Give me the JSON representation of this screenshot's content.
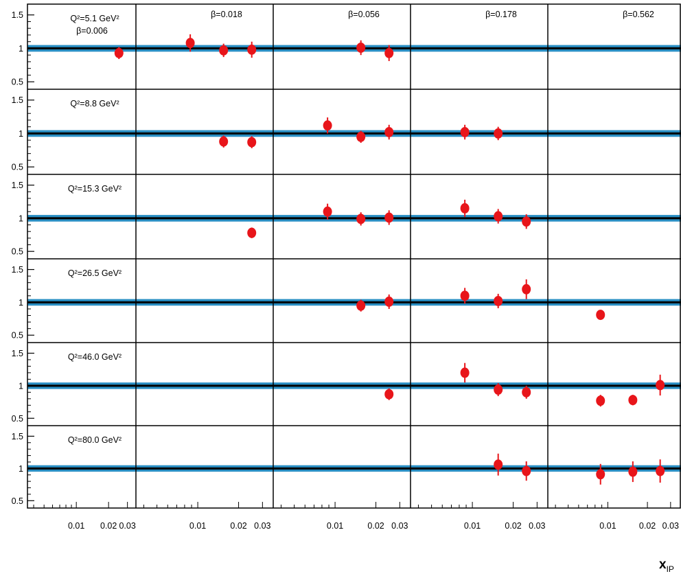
{
  "chart_data": {
    "type": "scatter",
    "description_axes": "grid of panels: rows are Q^2 bins, columns are beta bins; x axis x_IP (log), y axis ratio",
    "xlabel_main": "x",
    "xlabel_sub": "IP",
    "xscale": "log",
    "xlim": [
      0.0035,
      0.036
    ],
    "xticks": [
      0.01,
      0.02,
      0.03
    ],
    "xtick_labels": [
      "0.01",
      "0.02",
      "0.03"
    ],
    "ylim": [
      0.45,
      1.6
    ],
    "yticks": [
      0.5,
      1,
      1.5
    ],
    "ytick_labels": [
      "0.5",
      "1",
      "1.5"
    ],
    "band": {
      "center": 1.0,
      "half_width": 0.05
    },
    "colors": {
      "band": "#2a8fc4",
      "line": "#000000",
      "points": "#e8151a",
      "axes": "#000000"
    },
    "columns": [
      {
        "beta_label": "β=0.006"
      },
      {
        "beta_label": "β=0.018"
      },
      {
        "beta_label": "β=0.056"
      },
      {
        "beta_label": "β=0.178"
      },
      {
        "beta_label": "β=0.562"
      }
    ],
    "rows": [
      {
        "q2_label": "Q²=5.1 GeV²",
        "panels": [
          [
            {
              "x": 0.025,
              "y": 0.93,
              "err": 0.09
            }
          ],
          [
            {
              "x": 0.0088,
              "y": 1.08,
              "err": 0.13
            },
            {
              "x": 0.0155,
              "y": 0.97,
              "err": 0.1
            },
            {
              "x": 0.025,
              "y": 0.98,
              "err": 0.12
            }
          ],
          [
            {
              "x": 0.0155,
              "y": 1.01,
              "err": 0.11
            },
            {
              "x": 0.025,
              "y": 0.93,
              "err": 0.12
            }
          ],
          [],
          []
        ]
      },
      {
        "q2_label": "Q²=8.8 GeV²",
        "panels": [
          [],
          [
            {
              "x": 0.0155,
              "y": 0.88,
              "err": 0.09
            },
            {
              "x": 0.025,
              "y": 0.87,
              "err": 0.09
            }
          ],
          [
            {
              "x": 0.0088,
              "y": 1.12,
              "err": 0.12
            },
            {
              "x": 0.0155,
              "y": 0.95,
              "err": 0.09
            },
            {
              "x": 0.025,
              "y": 1.02,
              "err": 0.11
            }
          ],
          [
            {
              "x": 0.0088,
              "y": 1.02,
              "err": 0.11
            },
            {
              "x": 0.0155,
              "y": 1.0,
              "err": 0.1
            }
          ],
          []
        ]
      },
      {
        "q2_label": "Q²=15.3 GeV²",
        "panels": [
          [],
          [
            {
              "x": 0.025,
              "y": 0.78,
              "err": 0.08
            }
          ],
          [
            {
              "x": 0.0088,
              "y": 1.1,
              "err": 0.12
            },
            {
              "x": 0.0155,
              "y": 0.99,
              "err": 0.1
            },
            {
              "x": 0.025,
              "y": 1.01,
              "err": 0.11
            }
          ],
          [
            {
              "x": 0.0088,
              "y": 1.15,
              "err": 0.13
            },
            {
              "x": 0.0155,
              "y": 1.03,
              "err": 0.11
            },
            {
              "x": 0.025,
              "y": 0.95,
              "err": 0.11
            }
          ],
          []
        ]
      },
      {
        "q2_label": "Q²=26.5 GeV²",
        "panels": [
          [],
          [],
          [
            {
              "x": 0.0155,
              "y": 0.95,
              "err": 0.09
            },
            {
              "x": 0.025,
              "y": 1.01,
              "err": 0.11
            }
          ],
          [
            {
              "x": 0.0088,
              "y": 1.1,
              "err": 0.12
            },
            {
              "x": 0.0155,
              "y": 1.02,
              "err": 0.11
            },
            {
              "x": 0.025,
              "y": 1.2,
              "err": 0.15
            }
          ],
          [
            {
              "x": 0.0088,
              "y": 0.81,
              "err": 0.07
            }
          ]
        ]
      },
      {
        "q2_label": "Q²=46.0 GeV²",
        "panels": [
          [],
          [],
          [
            {
              "x": 0.025,
              "y": 0.87,
              "err": 0.09
            }
          ],
          [
            {
              "x": 0.0088,
              "y": 1.2,
              "err": 0.15
            },
            {
              "x": 0.0155,
              "y": 0.94,
              "err": 0.1
            },
            {
              "x": 0.025,
              "y": 0.9,
              "err": 0.1
            }
          ],
          [
            {
              "x": 0.0088,
              "y": 0.77,
              "err": 0.09
            },
            {
              "x": 0.0155,
              "y": 0.78,
              "err": 0.08
            },
            {
              "x": 0.025,
              "y": 1.01,
              "err": 0.16
            }
          ]
        ]
      },
      {
        "q2_label": "Q²=80.0 GeV²",
        "panels": [
          [],
          [],
          [],
          [
            {
              "x": 0.0155,
              "y": 1.06,
              "err": 0.17
            },
            {
              "x": 0.025,
              "y": 0.96,
              "err": 0.15
            }
          ],
          [
            {
              "x": 0.0088,
              "y": 0.91,
              "err": 0.16
            },
            {
              "x": 0.0155,
              "y": 0.95,
              "err": 0.16
            },
            {
              "x": 0.025,
              "y": 0.96,
              "err": 0.18
            }
          ]
        ]
      }
    ]
  }
}
